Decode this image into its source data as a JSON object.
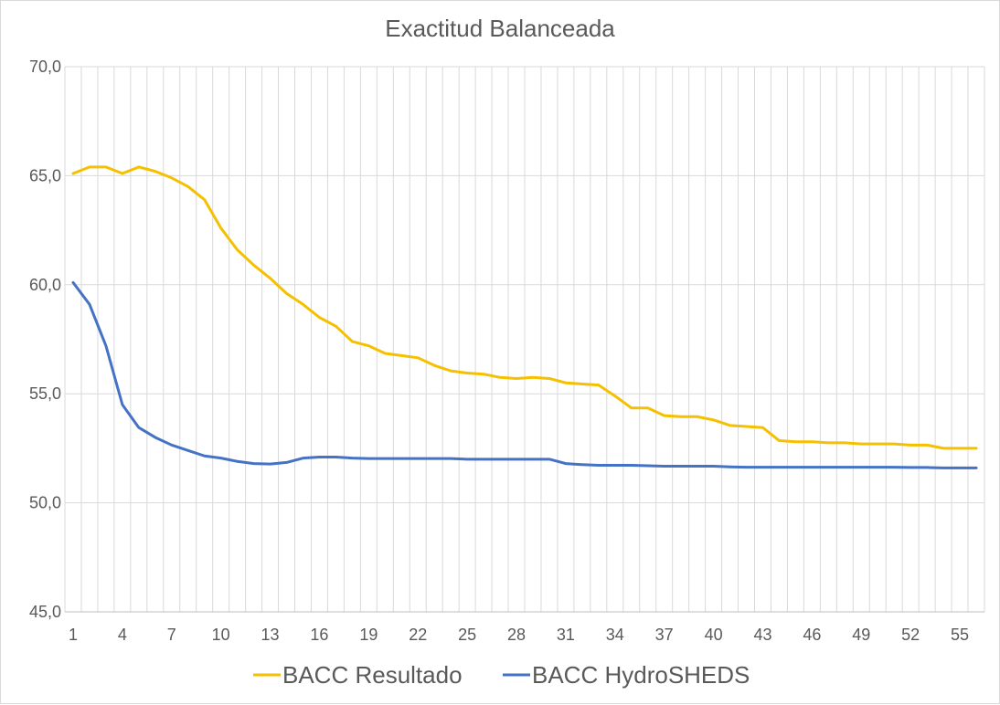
{
  "chart_data": {
    "type": "line",
    "title": "Exactitud Balanceada",
    "xlabel": "",
    "ylabel": "",
    "ylim": [
      45,
      70
    ],
    "y_ticks": [
      "45,0",
      "50,0",
      "55,0",
      "60,0",
      "65,0",
      "70,0"
    ],
    "y_tick_values": [
      45,
      50,
      55,
      60,
      65,
      70
    ],
    "x": [
      1,
      2,
      3,
      4,
      5,
      6,
      7,
      8,
      9,
      10,
      11,
      12,
      13,
      14,
      15,
      16,
      17,
      18,
      19,
      20,
      21,
      22,
      23,
      24,
      25,
      26,
      27,
      28,
      29,
      30,
      31,
      32,
      33,
      34,
      35,
      36,
      37,
      38,
      39,
      40,
      41,
      42,
      43,
      44,
      45,
      46,
      47,
      48,
      49,
      50,
      51,
      52,
      53,
      54,
      55,
      56
    ],
    "x_tick_labels": [
      "1",
      "4",
      "7",
      "10",
      "13",
      "16",
      "19",
      "22",
      "25",
      "28",
      "31",
      "34",
      "37",
      "40",
      "43",
      "46",
      "49",
      "52",
      "55"
    ],
    "x_tick_values": [
      1,
      4,
      7,
      10,
      13,
      16,
      19,
      22,
      25,
      28,
      31,
      34,
      37,
      40,
      43,
      46,
      49,
      52,
      55
    ],
    "grid": "vertical and horizontal",
    "legend_position": "bottom",
    "series": [
      {
        "name": "BACC Resultado",
        "color": "#f5c000",
        "values": [
          65.1,
          65.4,
          65.4,
          65.1,
          65.4,
          65.2,
          64.9,
          64.5,
          63.9,
          62.6,
          61.6,
          60.9,
          60.3,
          59.6,
          59.1,
          58.5,
          58.1,
          57.4,
          57.2,
          56.85,
          56.75,
          56.65,
          56.3,
          56.05,
          55.95,
          55.9,
          55.75,
          55.7,
          55.75,
          55.7,
          55.5,
          55.45,
          55.4,
          54.9,
          54.35,
          54.35,
          54.0,
          53.95,
          53.95,
          53.8,
          53.55,
          53.5,
          53.45,
          52.85,
          52.8,
          52.8,
          52.75,
          52.75,
          52.7,
          52.7,
          52.7,
          52.65,
          52.65,
          52.5,
          52.5,
          52.5
        ]
      },
      {
        "name": "BACC HydroSHEDS",
        "color": "#4472c4",
        "values": [
          60.1,
          59.1,
          57.2,
          54.5,
          53.45,
          53.0,
          52.65,
          52.4,
          52.15,
          52.05,
          51.9,
          51.8,
          51.78,
          51.85,
          52.05,
          52.1,
          52.1,
          52.05,
          52.03,
          52.03,
          52.03,
          52.03,
          52.03,
          52.03,
          52.0,
          52.0,
          52.0,
          52.0,
          52.0,
          52.0,
          51.8,
          51.75,
          51.72,
          51.72,
          51.72,
          51.7,
          51.68,
          51.68,
          51.68,
          51.68,
          51.65,
          51.63,
          51.63,
          51.63,
          51.63,
          51.63,
          51.63,
          51.63,
          51.63,
          51.63,
          51.63,
          51.62,
          51.62,
          51.6,
          51.6,
          51.6
        ]
      }
    ]
  }
}
